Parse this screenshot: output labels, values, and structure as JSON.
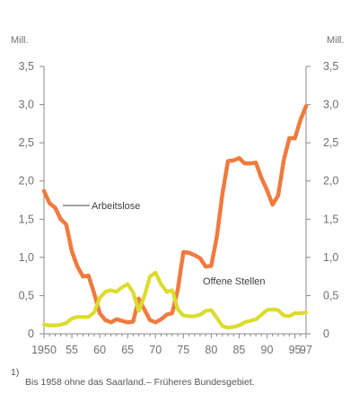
{
  "chart_data": {
    "type": "line",
    "y_unit_left": "Mill.",
    "y_unit_right": "Mill.",
    "ylim": [
      0,
      3.5
    ],
    "y_ticks": [
      0,
      0.5,
      1.0,
      1.5,
      2.0,
      2.5,
      3.0,
      3.5
    ],
    "y_tick_labels": [
      "0",
      "0,5",
      "1,0",
      "1,5",
      "2,0",
      "2,5",
      "3,0",
      "3,5"
    ],
    "xlim": [
      1950,
      1997
    ],
    "x_ticks": [
      1950,
      1955,
      1960,
      1965,
      1970,
      1975,
      1980,
      1985,
      1990,
      1995,
      1997
    ],
    "x_tick_labels": [
      "1950",
      "55",
      "60",
      "65",
      "70",
      "75",
      "80",
      "85",
      "90",
      "95",
      "97"
    ],
    "legend_position": "inline labels",
    "grid": false,
    "series": [
      {
        "name": "Arbeitslose",
        "color": "#f07b3f",
        "x": [
          1950,
          1951,
          1952,
          1953,
          1954,
          1955,
          1956,
          1957,
          1958,
          1959,
          1960,
          1961,
          1962,
          1963,
          1964,
          1965,
          1966,
          1967,
          1968,
          1969,
          1970,
          1971,
          1972,
          1973,
          1974,
          1975,
          1976,
          1977,
          1978,
          1979,
          1980,
          1981,
          1982,
          1983,
          1984,
          1985,
          1986,
          1987,
          1988,
          1989,
          1990,
          1991,
          1992,
          1993,
          1994,
          1995,
          1996,
          1997
        ],
        "y": [
          1.87,
          1.71,
          1.65,
          1.5,
          1.43,
          1.08,
          0.88,
          0.75,
          0.76,
          0.53,
          0.27,
          0.18,
          0.15,
          0.19,
          0.17,
          0.15,
          0.16,
          0.46,
          0.32,
          0.18,
          0.15,
          0.19,
          0.25,
          0.27,
          0.58,
          1.07,
          1.06,
          1.03,
          0.99,
          0.88,
          0.89,
          1.27,
          1.83,
          2.26,
          2.27,
          2.3,
          2.23,
          2.23,
          2.24,
          2.04,
          1.88,
          1.69,
          1.81,
          2.27,
          2.56,
          2.56,
          2.8,
          2.98
        ]
      },
      {
        "name": "Offene Stellen",
        "color": "#dbdc2f",
        "x": [
          1950,
          1951,
          1952,
          1953,
          1954,
          1955,
          1956,
          1957,
          1958,
          1959,
          1960,
          1961,
          1962,
          1963,
          1964,
          1965,
          1966,
          1967,
          1968,
          1969,
          1970,
          1971,
          1972,
          1973,
          1974,
          1975,
          1976,
          1977,
          1978,
          1979,
          1980,
          1981,
          1982,
          1983,
          1984,
          1985,
          1986,
          1987,
          1988,
          1989,
          1990,
          1991,
          1992,
          1993,
          1994,
          1995,
          1996,
          1997
        ],
        "y": [
          0.12,
          0.11,
          0.11,
          0.12,
          0.14,
          0.2,
          0.22,
          0.22,
          0.22,
          0.28,
          0.47,
          0.55,
          0.57,
          0.55,
          0.61,
          0.65,
          0.54,
          0.3,
          0.49,
          0.75,
          0.8,
          0.65,
          0.55,
          0.57,
          0.32,
          0.24,
          0.23,
          0.23,
          0.25,
          0.3,
          0.31,
          0.21,
          0.1,
          0.08,
          0.09,
          0.11,
          0.15,
          0.17,
          0.19,
          0.25,
          0.31,
          0.32,
          0.31,
          0.24,
          0.23,
          0.27,
          0.27,
          0.28
        ]
      }
    ],
    "annotations": {
      "arbeitslose_label": "Arbeitslose",
      "offene_stellen_label": "Offene Stellen"
    },
    "footnote": {
      "superscript": "1)",
      "text": "Bis 1958 ohne das Saarland.– Früheres Bundesgebiet."
    }
  }
}
